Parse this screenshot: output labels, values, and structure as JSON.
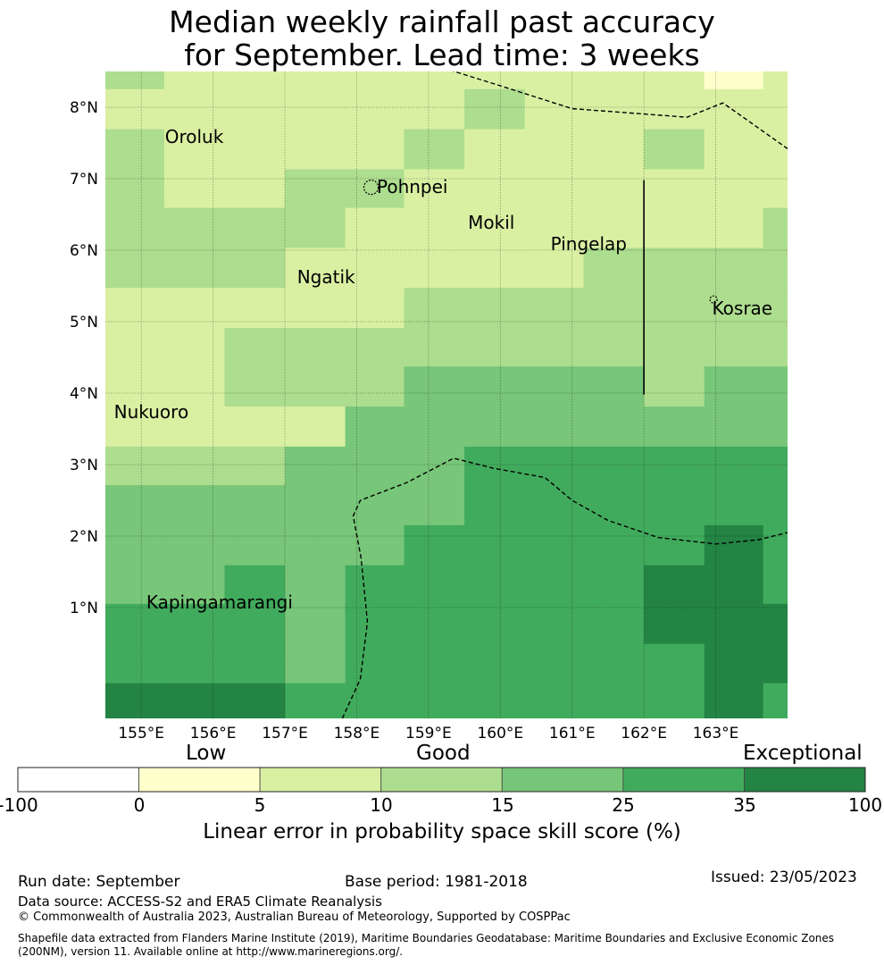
{
  "title": {
    "line1": "Median weekly rainfall past accuracy",
    "line2": "for September. Lead time: 3 weeks"
  },
  "map": {
    "lon_range": [
      154.5,
      164.0
    ],
    "lat_range": [
      -0.55,
      8.5
    ],
    "lon_ticks": [
      {
        "value": 155,
        "label": "155°E"
      },
      {
        "value": 156,
        "label": "156°E"
      },
      {
        "value": 157,
        "label": "157°E"
      },
      {
        "value": 158,
        "label": "158°E"
      },
      {
        "value": 159,
        "label": "159°E"
      },
      {
        "value": 160,
        "label": "160°E"
      },
      {
        "value": 161,
        "label": "161°E"
      },
      {
        "value": 162,
        "label": "162°E"
      },
      {
        "value": 163,
        "label": "163°E"
      }
    ],
    "lat_ticks": [
      {
        "value": 1,
        "label": "1°N"
      },
      {
        "value": 2,
        "label": "2°N"
      },
      {
        "value": 3,
        "label": "3°N"
      },
      {
        "value": 4,
        "label": "4°N"
      },
      {
        "value": 5,
        "label": "5°N"
      },
      {
        "value": 6,
        "label": "6°N"
      },
      {
        "value": 7,
        "label": "7°N"
      },
      {
        "value": 8,
        "label": "8°N"
      }
    ],
    "grid_lons": [
      154.5,
      155.32,
      156.16,
      157.0,
      157.84,
      158.66,
      159.5,
      160.34,
      161.16,
      162.0,
      162.84,
      163.66,
      164.0
    ],
    "grid_lats": [
      -0.55,
      -0.05,
      0.5,
      1.06,
      1.6,
      2.16,
      2.72,
      3.26,
      3.82,
      4.38,
      4.92,
      5.48,
      6.04,
      6.6,
      7.14,
      7.7,
      8.26,
      8.5
    ],
    "cells": [
      [
        5,
        5,
        5,
        4,
        4,
        4,
        4,
        4,
        4,
        4,
        5,
        4
      ],
      [
        4,
        4,
        4,
        3,
        4,
        4,
        4,
        4,
        4,
        4,
        5,
        5
      ],
      [
        4,
        4,
        4,
        3,
        4,
        4,
        4,
        4,
        4,
        5,
        5,
        5
      ],
      [
        3,
        3,
        4,
        3,
        4,
        4,
        4,
        4,
        4,
        5,
        5,
        4
      ],
      [
        3,
        3,
        3,
        3,
        3,
        4,
        4,
        4,
        4,
        4,
        5,
        4
      ],
      [
        3,
        3,
        3,
        3,
        3,
        3,
        4,
        4,
        4,
        4,
        4,
        4
      ],
      [
        2,
        2,
        2,
        3,
        3,
        3,
        4,
        4,
        4,
        4,
        4,
        4
      ],
      [
        1,
        1,
        1,
        1,
        3,
        3,
        3,
        3,
        3,
        3,
        3,
        3
      ],
      [
        1,
        1,
        2,
        2,
        2,
        3,
        3,
        3,
        3,
        2,
        3,
        3
      ],
      [
        1,
        1,
        2,
        2,
        2,
        2,
        2,
        2,
        2,
        2,
        2,
        2
      ],
      [
        1,
        1,
        1,
        1,
        1,
        2,
        2,
        2,
        2,
        2,
        2,
        2
      ],
      [
        2,
        2,
        2,
        1,
        1,
        1,
        1,
        1,
        2,
        2,
        2,
        2
      ],
      [
        2,
        2,
        2,
        2,
        1,
        1,
        1,
        1,
        1,
        1,
        1,
        2
      ],
      [
        2,
        1,
        1,
        2,
        2,
        1,
        1,
        1,
        1,
        1,
        1,
        1
      ],
      [
        2,
        1,
        1,
        1,
        1,
        2,
        1,
        1,
        1,
        2,
        1,
        1
      ],
      [
        1,
        1,
        1,
        1,
        1,
        1,
        2,
        1,
        1,
        1,
        1,
        1
      ],
      [
        2,
        1,
        1,
        1,
        1,
        1,
        1,
        1,
        1,
        1,
        0,
        1
      ]
    ],
    "places": [
      {
        "name": "Oroluk",
        "lon": 155.33,
        "lat": 7.5
      },
      {
        "name": "Pohnpei",
        "lon": 158.28,
        "lat": 6.8
      },
      {
        "name": "Mokil",
        "lon": 159.55,
        "lat": 6.3
      },
      {
        "name": "Pingelap",
        "lon": 160.7,
        "lat": 6.0
      },
      {
        "name": "Ngatik",
        "lon": 157.17,
        "lat": 5.54
      },
      {
        "name": "Kosrae",
        "lon": 162.95,
        "lat": 5.1
      },
      {
        "name": "Nukuoro",
        "lon": 154.62,
        "lat": 3.65
      },
      {
        "name": "Kapingamarangi",
        "lon": 155.07,
        "lat": 0.99
      }
    ],
    "boundaries": [
      [
        [
          159.2,
          8.55
        ],
        [
          160.0,
          8.3
        ],
        [
          161.0,
          7.98
        ],
        [
          162.6,
          7.86
        ],
        [
          163.1,
          8.06
        ],
        [
          164.0,
          7.42
        ]
      ],
      [
        [
          157.8,
          -0.55
        ],
        [
          158.05,
          0.0
        ],
        [
          158.15,
          0.8
        ],
        [
          158.06,
          1.7
        ],
        [
          157.95,
          2.28
        ],
        [
          158.05,
          2.5
        ],
        [
          158.7,
          2.75
        ],
        [
          159.35,
          3.09
        ],
        [
          159.9,
          2.95
        ],
        [
          160.62,
          2.82
        ],
        [
          161.0,
          2.5
        ],
        [
          161.5,
          2.22
        ],
        [
          162.2,
          1.98
        ],
        [
          163.0,
          1.89
        ],
        [
          163.6,
          1.95
        ],
        [
          164.0,
          2.05
        ]
      ]
    ],
    "line_segment": [
      [
        162.0,
        6.98
      ],
      [
        162.0,
        3.98
      ]
    ],
    "islands": [
      {
        "lon": 158.2,
        "lat": 6.88,
        "r": 0.1
      },
      {
        "lon": 162.97,
        "lat": 5.31,
        "r": 0.05
      }
    ]
  },
  "colorbar": {
    "categories": [
      "Low",
      "Good",
      "Exceptional"
    ],
    "bounds": [
      "-100",
      "0",
      "5",
      "10",
      "15",
      "25",
      "35",
      "100"
    ],
    "colors": [
      "#ffffff",
      "#ffffcc",
      "#d9f0a3",
      "#addd8e",
      "#78c679",
      "#41ab5d",
      "#238443"
    ],
    "title": "Linear error in probability space skill score (%)"
  },
  "footer": {
    "run_date": "Run date: September",
    "base_period": "Base period: 1981-2018",
    "issued": "Issued: 23/05/2023",
    "data_source": "Data source: ACCESS-S2 and ERA5 Climate Reanalysis",
    "copyright": "© Commonwealth of Australia 2023, Australian Bureau of Meteorology, Supported by COSPPac",
    "shapefile": "Shapefile data extracted from Flanders Marine Institute (2019), Maritime Boundaries Geodatabase: Maritime Boundaries and Exclusive Economic Zones (200NM), version 11. Available online at http://www.marineregions.org/."
  }
}
